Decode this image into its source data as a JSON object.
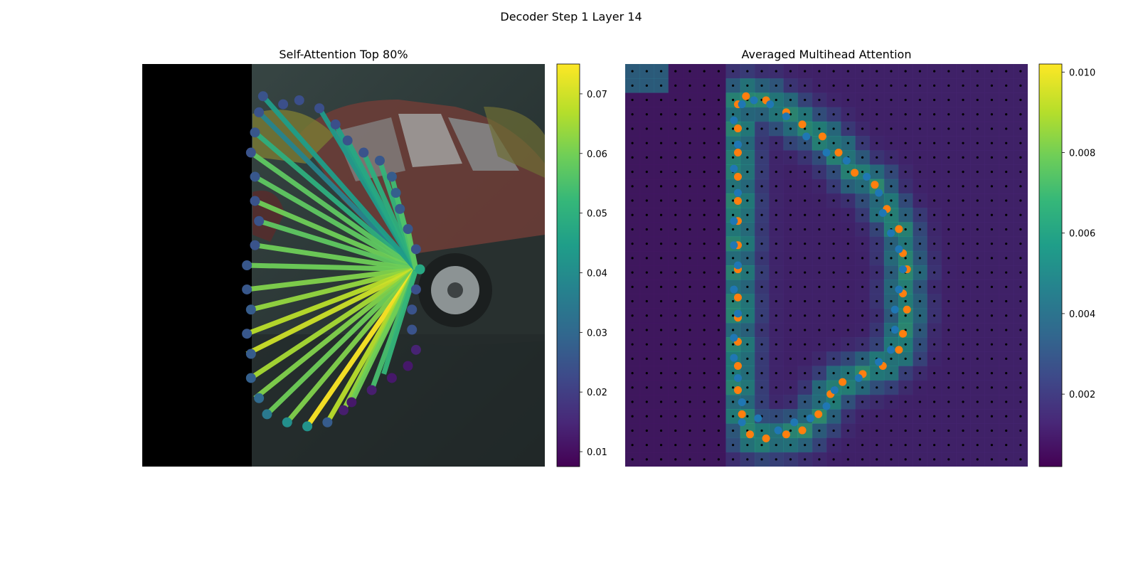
{
  "figure": {
    "suptitle": "Decoder Step 1 Layer 14"
  },
  "colors": {
    "viridis": [
      "#440154",
      "#482878",
      "#3e4989",
      "#31688e",
      "#26828e",
      "#1f9e89",
      "#35b779",
      "#6ece58",
      "#b5de2b",
      "#fde725"
    ],
    "pred": "#1f77b4",
    "gt": "#ff7f0e"
  },
  "chart_data": [
    {
      "type": "scatter",
      "title": "Self-Attention Top 80%",
      "xlim": [
        0,
        1
      ],
      "ylim": [
        0,
        1
      ],
      "query_point": [
        0.68,
        0.49
      ],
      "points": [
        {
          "x": 0.3,
          "y": 0.92,
          "w": 0.025
        },
        {
          "x": 0.35,
          "y": 0.9,
          "w": 0.024
        },
        {
          "x": 0.39,
          "y": 0.91,
          "w": 0.024
        },
        {
          "x": 0.44,
          "y": 0.89,
          "w": 0.024
        },
        {
          "x": 0.48,
          "y": 0.85,
          "w": 0.024
        },
        {
          "x": 0.51,
          "y": 0.81,
          "w": 0.025
        },
        {
          "x": 0.55,
          "y": 0.78,
          "w": 0.025
        },
        {
          "x": 0.59,
          "y": 0.76,
          "w": 0.026
        },
        {
          "x": 0.62,
          "y": 0.72,
          "w": 0.027
        },
        {
          "x": 0.63,
          "y": 0.68,
          "w": 0.028
        },
        {
          "x": 0.64,
          "y": 0.64,
          "w": 0.027
        },
        {
          "x": 0.66,
          "y": 0.59,
          "w": 0.026
        },
        {
          "x": 0.68,
          "y": 0.54,
          "w": 0.025
        },
        {
          "x": 0.69,
          "y": 0.49,
          "w": 0.048
        },
        {
          "x": 0.68,
          "y": 0.44,
          "w": 0.024
        },
        {
          "x": 0.67,
          "y": 0.39,
          "w": 0.025
        },
        {
          "x": 0.67,
          "y": 0.34,
          "w": 0.025
        },
        {
          "x": 0.68,
          "y": 0.29,
          "w": 0.014
        },
        {
          "x": 0.66,
          "y": 0.25,
          "w": 0.012
        },
        {
          "x": 0.62,
          "y": 0.22,
          "w": 0.012
        },
        {
          "x": 0.57,
          "y": 0.19,
          "w": 0.013
        },
        {
          "x": 0.52,
          "y": 0.16,
          "w": 0.012
        },
        {
          "x": 0.5,
          "y": 0.14,
          "w": 0.013
        },
        {
          "x": 0.46,
          "y": 0.11,
          "w": 0.027
        },
        {
          "x": 0.41,
          "y": 0.1,
          "w": 0.042
        },
        {
          "x": 0.36,
          "y": 0.11,
          "w": 0.041
        },
        {
          "x": 0.31,
          "y": 0.13,
          "w": 0.035
        },
        {
          "x": 0.29,
          "y": 0.17,
          "w": 0.031
        },
        {
          "x": 0.27,
          "y": 0.22,
          "w": 0.028
        },
        {
          "x": 0.27,
          "y": 0.28,
          "w": 0.027
        },
        {
          "x": 0.26,
          "y": 0.33,
          "w": 0.026
        },
        {
          "x": 0.27,
          "y": 0.39,
          "w": 0.027
        },
        {
          "x": 0.26,
          "y": 0.44,
          "w": 0.026
        },
        {
          "x": 0.26,
          "y": 0.5,
          "w": 0.026
        },
        {
          "x": 0.28,
          "y": 0.55,
          "w": 0.025
        },
        {
          "x": 0.29,
          "y": 0.61,
          "w": 0.025
        },
        {
          "x": 0.28,
          "y": 0.66,
          "w": 0.025
        },
        {
          "x": 0.28,
          "y": 0.72,
          "w": 0.026
        },
        {
          "x": 0.27,
          "y": 0.78,
          "w": 0.025
        },
        {
          "x": 0.28,
          "y": 0.83,
          "w": 0.026
        },
        {
          "x": 0.29,
          "y": 0.88,
          "w": 0.025
        }
      ],
      "lines": [
        {
          "to": [
            0.29,
            0.88
          ],
          "w": 0.038
        },
        {
          "to": [
            0.28,
            0.83
          ],
          "w": 0.05
        },
        {
          "to": [
            0.27,
            0.78
          ],
          "w": 0.058
        },
        {
          "to": [
            0.28,
            0.72
          ],
          "w": 0.058
        },
        {
          "to": [
            0.28,
            0.66
          ],
          "w": 0.06
        },
        {
          "to": [
            0.29,
            0.61
          ],
          "w": 0.058
        },
        {
          "to": [
            0.28,
            0.55
          ],
          "w": 0.06
        },
        {
          "to": [
            0.26,
            0.5
          ],
          "w": 0.06
        },
        {
          "to": [
            0.26,
            0.44
          ],
          "w": 0.062
        },
        {
          "to": [
            0.27,
            0.39
          ],
          "w": 0.064
        },
        {
          "to": [
            0.26,
            0.33
          ],
          "w": 0.068
        },
        {
          "to": [
            0.26,
            0.28
          ],
          "w": 0.07
        },
        {
          "to": [
            0.27,
            0.22
          ],
          "w": 0.066
        },
        {
          "to": [
            0.28,
            0.17
          ],
          "w": 0.062
        },
        {
          "to": [
            0.31,
            0.13
          ],
          "w": 0.06
        },
        {
          "to": [
            0.36,
            0.11
          ],
          "w": 0.062
        },
        {
          "to": [
            0.41,
            0.1
          ],
          "w": 0.075
        },
        {
          "to": [
            0.46,
            0.11
          ],
          "w": 0.068
        },
        {
          "to": [
            0.5,
            0.14
          ],
          "w": 0.064
        },
        {
          "to": [
            0.52,
            0.16
          ],
          "w": 0.06
        },
        {
          "to": [
            0.57,
            0.19
          ],
          "w": 0.055
        },
        {
          "to": [
            0.6,
            0.23
          ],
          "w": 0.052
        },
        {
          "to": [
            0.3,
            0.92
          ],
          "w": 0.045
        },
        {
          "to": [
            0.44,
            0.89
          ],
          "w": 0.044
        },
        {
          "to": [
            0.48,
            0.85
          ],
          "w": 0.046
        },
        {
          "to": [
            0.51,
            0.81
          ],
          "w": 0.048
        },
        {
          "to": [
            0.55,
            0.78
          ],
          "w": 0.05
        },
        {
          "to": [
            0.59,
            0.76
          ],
          "w": 0.052
        },
        {
          "to": [
            0.62,
            0.72
          ],
          "w": 0.054
        },
        {
          "to": [
            0.63,
            0.68
          ],
          "w": 0.055
        },
        {
          "to": [
            0.64,
            0.64
          ],
          "w": 0.056
        },
        {
          "to": [
            0.66,
            0.59
          ],
          "w": 0.058
        }
      ],
      "colorbar": {
        "min": 0.0075,
        "max": 0.075,
        "ticks": [
          "0.01",
          "0.02",
          "0.03",
          "0.04",
          "0.05",
          "0.06",
          "0.07"
        ],
        "tick_values": [
          0.01,
          0.02,
          0.03,
          0.04,
          0.05,
          0.06,
          0.07
        ]
      }
    },
    {
      "type": "heatmap",
      "title": "Averaged Multihead Attention",
      "xlim": [
        0,
        1
      ],
      "ylim": [
        0,
        1
      ],
      "grid": {
        "cols": 28,
        "rows": 28
      },
      "outline_gt": [
        [
          0.3,
          0.92
        ],
        [
          0.35,
          0.91
        ],
        [
          0.4,
          0.88
        ],
        [
          0.44,
          0.85
        ],
        [
          0.49,
          0.82
        ],
        [
          0.53,
          0.78
        ],
        [
          0.57,
          0.73
        ],
        [
          0.62,
          0.7
        ],
        [
          0.65,
          0.64
        ],
        [
          0.68,
          0.59
        ],
        [
          0.69,
          0.53
        ],
        [
          0.7,
          0.49
        ],
        [
          0.69,
          0.43
        ],
        [
          0.7,
          0.39
        ],
        [
          0.69,
          0.33
        ],
        [
          0.68,
          0.29
        ],
        [
          0.64,
          0.25
        ],
        [
          0.59,
          0.23
        ],
        [
          0.54,
          0.21
        ],
        [
          0.51,
          0.18
        ],
        [
          0.48,
          0.13
        ],
        [
          0.44,
          0.09
        ],
        [
          0.4,
          0.08
        ],
        [
          0.35,
          0.07
        ],
        [
          0.31,
          0.08
        ],
        [
          0.29,
          0.13
        ],
        [
          0.28,
          0.19
        ],
        [
          0.28,
          0.25
        ],
        [
          0.28,
          0.31
        ],
        [
          0.28,
          0.37
        ],
        [
          0.28,
          0.42
        ],
        [
          0.28,
          0.49
        ],
        [
          0.28,
          0.55
        ],
        [
          0.28,
          0.61
        ],
        [
          0.28,
          0.66
        ],
        [
          0.28,
          0.72
        ],
        [
          0.28,
          0.78
        ],
        [
          0.28,
          0.84
        ],
        [
          0.28,
          0.9
        ]
      ],
      "outline_pred": [
        [
          0.29,
          0.9
        ],
        [
          0.32,
          0.91
        ],
        [
          0.36,
          0.9
        ],
        [
          0.4,
          0.87
        ],
        [
          0.45,
          0.82
        ],
        [
          0.5,
          0.78
        ],
        [
          0.55,
          0.76
        ],
        [
          0.6,
          0.72
        ],
        [
          0.63,
          0.68
        ],
        [
          0.64,
          0.63
        ],
        [
          0.66,
          0.58
        ],
        [
          0.68,
          0.54
        ],
        [
          0.69,
          0.49
        ],
        [
          0.68,
          0.44
        ],
        [
          0.67,
          0.39
        ],
        [
          0.67,
          0.34
        ],
        [
          0.66,
          0.29
        ],
        [
          0.63,
          0.26
        ],
        [
          0.58,
          0.22
        ],
        [
          0.52,
          0.19
        ],
        [
          0.5,
          0.15
        ],
        [
          0.46,
          0.12
        ],
        [
          0.42,
          0.11
        ],
        [
          0.38,
          0.09
        ],
        [
          0.33,
          0.12
        ],
        [
          0.29,
          0.11
        ],
        [
          0.29,
          0.16
        ],
        [
          0.28,
          0.22
        ],
        [
          0.27,
          0.27
        ],
        [
          0.27,
          0.32
        ],
        [
          0.28,
          0.38
        ],
        [
          0.27,
          0.44
        ],
        [
          0.28,
          0.5
        ],
        [
          0.27,
          0.55
        ],
        [
          0.27,
          0.61
        ],
        [
          0.28,
          0.68
        ],
        [
          0.27,
          0.74
        ],
        [
          0.28,
          0.8
        ],
        [
          0.27,
          0.86
        ]
      ],
      "colorbar": {
        "min": 0.0002,
        "max": 0.0102,
        "ticks": [
          "0.002",
          "0.004",
          "0.006",
          "0.008",
          "0.010"
        ],
        "tick_values": [
          0.002,
          0.004,
          0.006,
          0.008,
          0.01
        ]
      }
    }
  ]
}
